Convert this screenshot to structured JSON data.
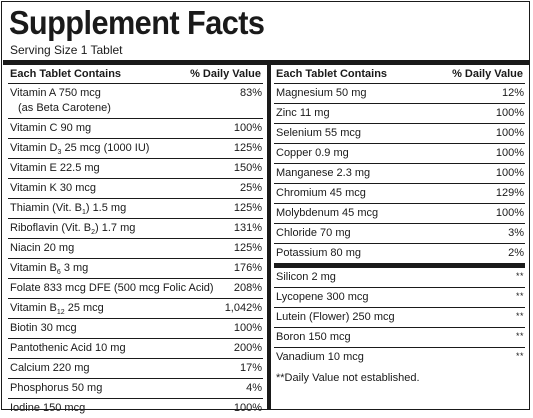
{
  "title": "Supplement Facts",
  "serving": "Serving Size 1 Tablet",
  "headers": {
    "left": "Each Tablet Contains",
    "right": "% Daily Value"
  },
  "left_rows": [
    {
      "name": "Vitamin A 750 mcg",
      "name2": "(as Beta Carotene)",
      "dv": "83%"
    },
    {
      "name": "Vitamin C 90 mg",
      "dv": "100%"
    },
    {
      "name_pre": "Vitamin D",
      "sub": "3",
      "name_post": " 25 mcg (1000 IU)",
      "dv": "125%"
    },
    {
      "name": "Vitamin E 22.5 mg",
      "dv": "150%"
    },
    {
      "name": "Vitamin K 30 mcg",
      "dv": "25%"
    },
    {
      "name_pre": "Thiamin (Vit. B",
      "sub": "1",
      "name_post": ") 1.5 mg",
      "dv": "125%"
    },
    {
      "name_pre": "Riboflavin (Vit. B",
      "sub": "2",
      "name_post": ") 1.7 mg",
      "dv": "131%"
    },
    {
      "name": "Niacin 20 mg",
      "dv": "125%"
    },
    {
      "name_pre": "Vitamin B",
      "sub": "6",
      "name_post": " 3 mg",
      "dv": "176%"
    },
    {
      "name": "Folate 833 mcg DFE (500 mcg Folic Acid)",
      "dv": "208%"
    },
    {
      "name_pre": "Vitamin B",
      "sub": "12",
      "name_post": " 25 mcg",
      "dv": "1,042%"
    },
    {
      "name": "Biotin 30 mcg",
      "dv": "100%"
    },
    {
      "name": "Pantothenic Acid 10 mg",
      "dv": "200%"
    },
    {
      "name": "Calcium 220 mg",
      "dv": "17%"
    },
    {
      "name": "Phosphorus 50 mg",
      "dv": "4%"
    },
    {
      "name": "Iodine 150 mcg",
      "dv": "100%"
    }
  ],
  "right_rows": [
    {
      "name": "Magnesium 50 mg",
      "dv": "12%"
    },
    {
      "name": "Zinc 11 mg",
      "dv": "100%"
    },
    {
      "name": "Selenium 55 mcg",
      "dv": "100%"
    },
    {
      "name": "Copper 0.9 mg",
      "dv": "100%"
    },
    {
      "name": "Manganese 2.3 mg",
      "dv": "100%"
    },
    {
      "name": "Chromium 45 mcg",
      "dv": "129%"
    },
    {
      "name": "Molybdenum  45 mcg",
      "dv": "100%"
    },
    {
      "name": "Chloride  70 mg",
      "dv": "3%"
    },
    {
      "name": "Potassium  80 mg",
      "dv": "2%"
    },
    {
      "name": "Silicon  2 mg",
      "dv": "**"
    },
    {
      "name": "Lycopene  300 mcg",
      "dv": "**"
    },
    {
      "name": "Lutein (Flower)  250 mcg",
      "dv": "**"
    },
    {
      "name": "Boron  150 mcg",
      "dv": "**"
    },
    {
      "name": "Vanadium  10 mcg",
      "dv": "**"
    }
  ],
  "footnote": "**Daily Value not established."
}
